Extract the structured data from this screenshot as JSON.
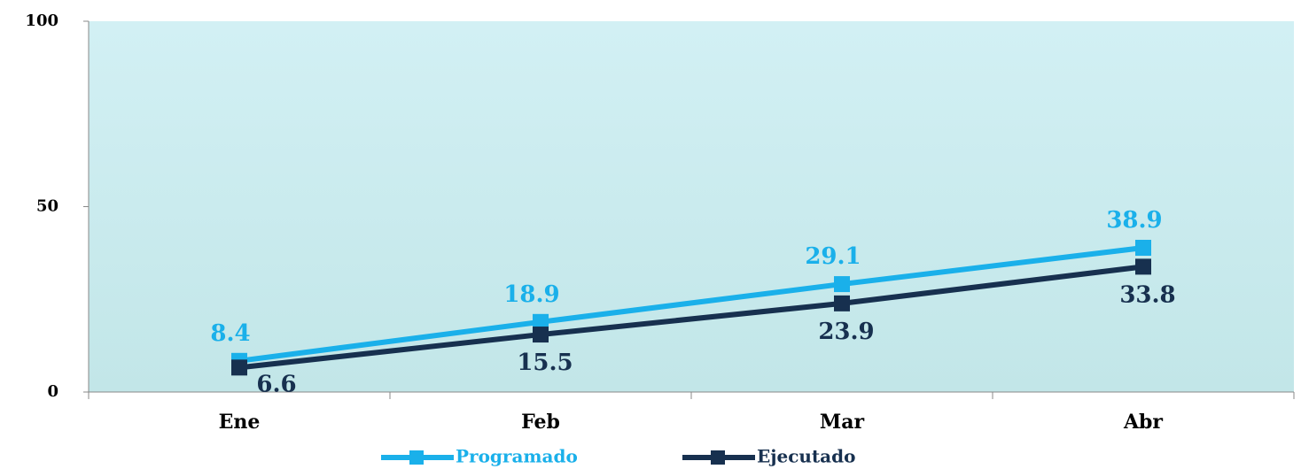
{
  "chart_data": {
    "type": "line",
    "categories": [
      "Ene",
      "Feb",
      "Mar",
      "Abr"
    ],
    "series": [
      {
        "name": "Programado",
        "color": "#1ab0ea",
        "values": [
          8.4,
          18.9,
          29.1,
          38.9
        ]
      },
      {
        "name": "Ejecutado",
        "color": "#17304f",
        "values": [
          6.6,
          15.5,
          23.9,
          33.8
        ]
      }
    ],
    "ylim": [
      0,
      100
    ],
    "yticks": [
      0,
      50,
      100
    ],
    "legend": "bottom"
  }
}
